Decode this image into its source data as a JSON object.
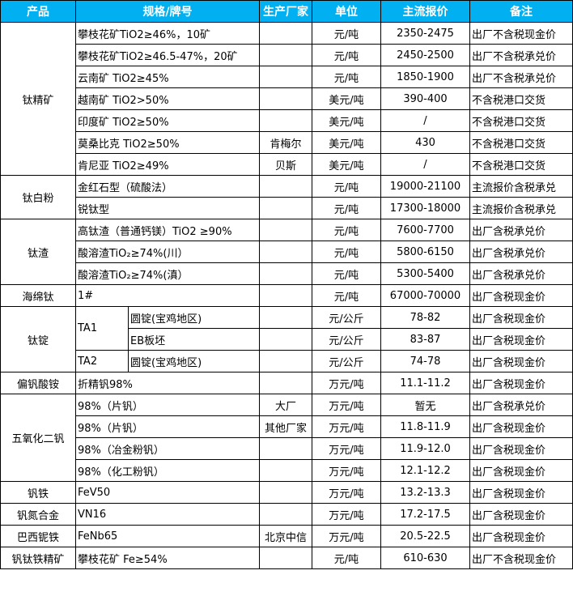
{
  "header": [
    "产品",
    "规格/牌号",
    "生产厂家",
    "单位",
    "主流报价",
    "备注"
  ],
  "header_bg": "#00b0f0",
  "groups": [
    {
      "product": "钛精矿",
      "rows": [
        {
          "spec": "攀枝花矿TiO2≥46%，10矿",
          "maker": "",
          "unit": "元/吨",
          "price": "2350-2475",
          "note": "出厂不含税现金价"
        },
        {
          "spec": "攀枝花矿TiO2≥46.5-47%，20矿",
          "maker": "",
          "unit": "元/吨",
          "price": "2450-2500",
          "note": "出厂不含税承兑价"
        },
        {
          "spec": "云南矿 TiO2≥45%",
          "maker": "",
          "unit": "元/吨",
          "price": "1850-1900",
          "note": "出厂不含税承兑价"
        },
        {
          "spec": "越南矿 TiO2>50%",
          "maker": "",
          "unit": "美元/吨",
          "price": "390-400",
          "note": "不含税港口交货"
        },
        {
          "spec": "印度矿 TiO2≥50%",
          "maker": "",
          "unit": "美元/吨",
          "price": "/",
          "note": "不含税港口交货"
        },
        {
          "spec": "莫桑比克 TiO2≥50%",
          "maker": "肯梅尔",
          "unit": "美元/吨",
          "price": "430",
          "note": "不含税港口交货"
        },
        {
          "spec": "肯尼亚 TiO2≥49%",
          "maker": "贝斯",
          "unit": "美元/吨",
          "price": "/",
          "note": "不含税港口交货"
        }
      ]
    },
    {
      "product": "钛白粉",
      "rows": [
        {
          "spec": "金红石型（硫酸法）",
          "maker": "",
          "unit": "元/吨",
          "price": "19000-21100",
          "note": "主流报价含税承兑"
        },
        {
          "spec": "锐钛型",
          "maker": "",
          "unit": "元/吨",
          "price": "17300-18000",
          "note": "主流报价含税承兑"
        }
      ]
    },
    {
      "product": "钛渣",
      "rows": [
        {
          "spec": "高钛渣（普通钙镁）TiO2 ≥90%",
          "maker": "",
          "unit": "元/吨",
          "price": "7600-7700",
          "note": "出厂含税承兑价"
        },
        {
          "spec": "酸溶渣TiO₂≥74%(川）",
          "maker": "",
          "unit": "元/吨",
          "price": "5800-6150",
          "note": "出厂含税承兑价"
        },
        {
          "spec": "酸溶渣TiO₂≥74%(滇）",
          "maker": "",
          "unit": "元/吨",
          "price": "5300-5400",
          "note": "出厂含税承兑价"
        }
      ]
    },
    {
      "product": "海绵钛",
      "rows": [
        {
          "spec": "1#",
          "maker": "",
          "unit": "元/吨",
          "price": "67000-70000",
          "note": "出厂含税现金价"
        }
      ]
    },
    {
      "product": "钛锭",
      "grades": [
        {
          "grade": "TA1",
          "rows": [
            {
              "spec": "圆锭(宝鸡地区)",
              "maker": "",
              "unit": "元/公斤",
              "price": "78-82",
              "note": "出厂含税现金价"
            },
            {
              "spec": "EB板坯",
              "maker": "",
              "unit": "元/公斤",
              "price": "83-87",
              "note": "出厂含税现金价"
            }
          ]
        },
        {
          "grade": "TA2",
          "rows": [
            {
              "spec": "圆锭(宝鸡地区)",
              "maker": "",
              "unit": "元/公斤",
              "price": "74-78",
              "note": "出厂含税现金价"
            }
          ]
        }
      ]
    },
    {
      "product": "偏钒酸铵",
      "rows": [
        {
          "spec": "折精钒98%",
          "maker": "",
          "unit": "万元/吨",
          "price": "11.1-11.2",
          "note": "出厂含税现金价"
        }
      ]
    },
    {
      "product": "五氧化二钒",
      "rows": [
        {
          "spec": "98%（片钒）",
          "maker": "大厂",
          "unit": "万元/吨",
          "price": "暂无",
          "note": "出厂含税承兑价"
        },
        {
          "spec": "98%（片钒）",
          "maker": "其他厂家",
          "unit": "万元/吨",
          "price": "11.8-11.9",
          "note": "出厂含税现金价"
        },
        {
          "spec": "98%（冶金粉钒）",
          "maker": "",
          "unit": "万元/吨",
          "price": "11.9-12.0",
          "note": "出厂含税现金价"
        },
        {
          "spec": "98%（化工粉钒）",
          "maker": "",
          "unit": "万元/吨",
          "price": "12.1-12.2",
          "note": "出厂含税现金价"
        }
      ]
    },
    {
      "product": "钒铁",
      "rows": [
        {
          "spec": "FeV50",
          "maker": "",
          "unit": "万元/吨",
          "price": "13.2-13.3",
          "note": "出厂含税现金价"
        }
      ]
    },
    {
      "product": "钒氮合金",
      "rows": [
        {
          "spec": "VN16",
          "maker": "",
          "unit": "万元/吨",
          "price": "17.2-17.5",
          "note": "出厂含税现金价"
        }
      ]
    },
    {
      "product": "巴西铌铁",
      "rows": [
        {
          "spec": "FeNb65",
          "maker": "北京中信",
          "unit": "万元/吨",
          "price": "20.5-22.5",
          "note": "出厂含税现金价"
        }
      ]
    },
    {
      "product": "钒钛铁精矿",
      "rows": [
        {
          "spec": "攀枝花矿 Fe≥54%",
          "maker": "",
          "unit": "元/吨",
          "price": "610-630",
          "note": "出厂不含税现金价"
        }
      ]
    }
  ]
}
